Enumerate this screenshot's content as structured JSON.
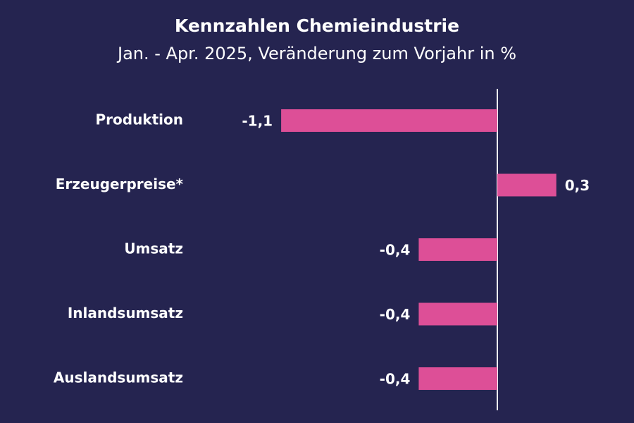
{
  "chart_data": {
    "type": "bar",
    "orientation": "horizontal",
    "title": "Kennzahlen Chemieindustrie",
    "subtitle": "Jan. - Apr. 2025, Veränderung zum Vorjahr in %",
    "categories": [
      "Produktion",
      "Erzeugerpreise*",
      "Umsatz",
      "Inlandsumsatz",
      "Auslandsumsatz"
    ],
    "values": [
      -1.1,
      0.3,
      -0.4,
      -0.4,
      -0.4
    ],
    "value_labels": [
      "-1,1",
      "0,3",
      "-0,4",
      "-0,4",
      "-0,4"
    ],
    "xlabel": "",
    "ylabel": "",
    "xlim": [
      -1.1,
      0.3
    ],
    "grid": false,
    "legend": "none",
    "colors": {
      "background": "#252450",
      "bar": "#dd4f97",
      "text": "#ffffff",
      "zero_line": "#ffffff"
    }
  }
}
